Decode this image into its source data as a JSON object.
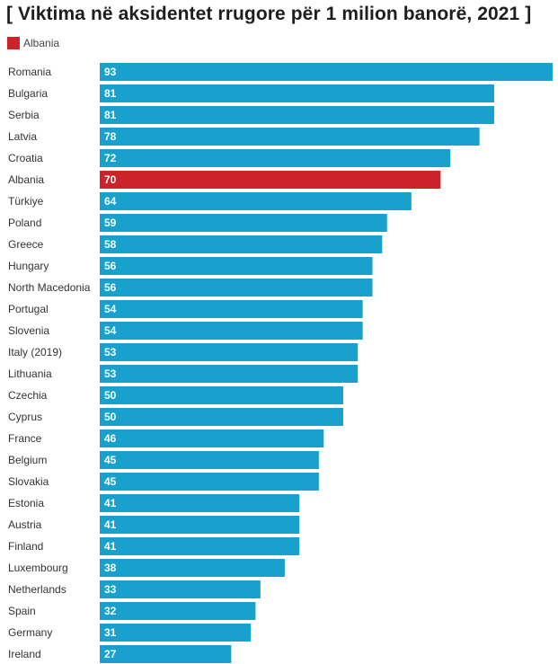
{
  "chart_data": {
    "type": "bar",
    "orientation": "horizontal",
    "title": "[ Viktima në aksidentet rrugore për 1 milion banorë, 2021 ]",
    "legend": [
      {
        "label": "Albania",
        "color": "#cc2229"
      }
    ],
    "categories": [
      "Romania",
      "Bulgaria",
      "Serbia",
      "Latvia",
      "Croatia",
      "Albania",
      "Türkiye",
      "Poland",
      "Greece",
      "Hungary",
      "North Macedonia",
      "Portugal",
      "Slovenia",
      "Italy (2019)",
      "Lithuania",
      "Czechia",
      "Cyprus",
      "France",
      "Belgium",
      "Slovakia",
      "Estonia",
      "Austria",
      "Finland",
      "Luxembourg",
      "Netherlands",
      "Spain",
      "Germany",
      "Ireland"
    ],
    "values": [
      93,
      81,
      81,
      78,
      72,
      70,
      64,
      59,
      58,
      56,
      56,
      54,
      54,
      53,
      53,
      50,
      50,
      46,
      45,
      45,
      41,
      41,
      41,
      38,
      33,
      32,
      31,
      27
    ],
    "highlight": "Albania",
    "bar_color": "#18a1cd",
    "highlight_color": "#cc2229",
    "xlim": [
      0,
      93
    ]
  }
}
